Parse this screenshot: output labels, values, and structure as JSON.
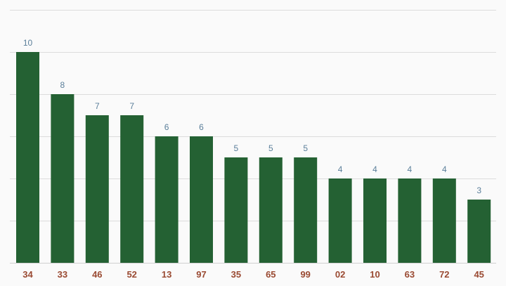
{
  "colors": {
    "bar": "#246133",
    "value_label": "#5b7f9a",
    "tick_label": "#9a4a32"
  },
  "chart_data": {
    "type": "bar",
    "categories": [
      "34",
      "33",
      "46",
      "52",
      "13",
      "97",
      "35",
      "65",
      "99",
      "02",
      "10",
      "63",
      "72",
      "45"
    ],
    "values": [
      10,
      8,
      7,
      7,
      6,
      6,
      5,
      5,
      5,
      4,
      4,
      4,
      4,
      3
    ],
    "ylim": [
      0,
      12
    ],
    "grid": true,
    "legend": "none"
  }
}
